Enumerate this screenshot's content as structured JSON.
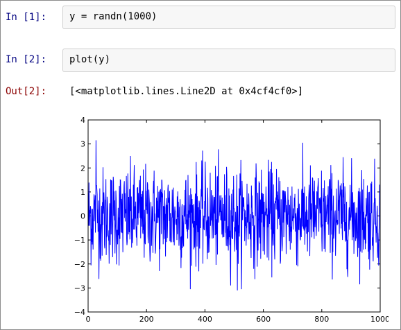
{
  "cells": [
    {
      "prompt": "In [1]:",
      "code": "y = randn(1000)"
    },
    {
      "prompt": "In [2]:",
      "code": "plot(y)"
    }
  ],
  "output": {
    "prompt": "Out[2]:",
    "text": "[<matplotlib.lines.Line2D at 0x4cf4cf0>]"
  },
  "colors": {
    "line": "#0000ff",
    "in_prompt": "#000080",
    "out_prompt": "#8b0000"
  },
  "chart_data": {
    "type": "line",
    "title": "",
    "xlabel": "",
    "ylabel": "",
    "xlim": [
      0,
      1000
    ],
    "ylim": [
      -4,
      4
    ],
    "x_ticks": [
      0,
      200,
      400,
      600,
      800,
      1000
    ],
    "y_ticks": [
      4,
      3,
      2,
      1,
      0,
      -1,
      -2,
      -3,
      -4
    ],
    "series": [
      {
        "n_points": 1000,
        "distribution": "standard normal (randn)",
        "y_max_approx": 3.15,
        "y_min_approx": -3.1
      }
    ],
    "grid": false,
    "legend": "none"
  }
}
